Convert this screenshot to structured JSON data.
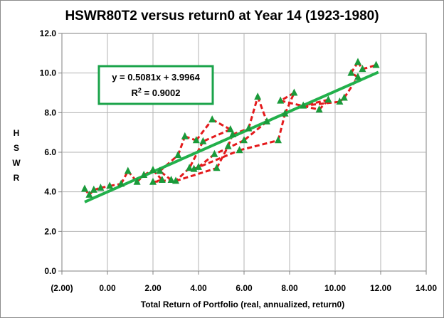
{
  "chart_data": {
    "type": "scatter",
    "title": "HSWR80T2 versus return0 at Year 14 (1923-1980)",
    "xlabel": "Total Return of Portfolio (real, annualized, return0)",
    "ylabel": "HSWR",
    "xlim": [
      -2,
      14
    ],
    "ylim": [
      0,
      12
    ],
    "x_ticks": [
      "(2.00)",
      "0.00",
      "2.00",
      "4.00",
      "6.00",
      "8.00",
      "10.00",
      "12.00",
      "14.00"
    ],
    "y_ticks": [
      "0.0",
      "2.0",
      "4.0",
      "6.0",
      "8.0",
      "10.0",
      "12.0"
    ],
    "grid": true,
    "colors": {
      "series": "#e41a1c",
      "marker": "#1a9a3a",
      "trend": "#22b04b",
      "negative_tick": "#cc0000"
    },
    "series": [
      {
        "points": [
          [
            -1.0,
            4.15
          ],
          [
            -0.8,
            3.85
          ],
          [
            -0.6,
            4.1
          ],
          [
            -0.3,
            4.2
          ],
          [
            0.1,
            4.3
          ],
          [
            0.6,
            4.4
          ],
          [
            0.9,
            5.05
          ],
          [
            1.3,
            4.5
          ],
          [
            1.6,
            4.85
          ],
          [
            2.0,
            5.1
          ],
          [
            2.4,
            4.6
          ],
          [
            2.0,
            4.5
          ],
          [
            2.8,
            4.6
          ],
          [
            2.3,
            5.05
          ],
          [
            3.1,
            5.85
          ],
          [
            3.4,
            6.8
          ],
          [
            3.9,
            6.6
          ],
          [
            4.6,
            7.65
          ],
          [
            5.4,
            7.15
          ],
          [
            4.2,
            6.55
          ],
          [
            3.6,
            5.2
          ],
          [
            3.0,
            4.55
          ],
          [
            4.8,
            5.2
          ],
          [
            5.3,
            6.3
          ],
          [
            5.5,
            6.9
          ],
          [
            6.2,
            7.2
          ],
          [
            6.6,
            8.8
          ],
          [
            7.0,
            7.55
          ],
          [
            6.0,
            6.6
          ],
          [
            4.7,
            5.9
          ],
          [
            4.0,
            5.25
          ],
          [
            3.8,
            5.15
          ],
          [
            5.8,
            6.1
          ],
          [
            7.5,
            6.6
          ],
          [
            7.8,
            7.95
          ],
          [
            8.2,
            9.0
          ],
          [
            7.6,
            8.6
          ],
          [
            9.3,
            8.15
          ],
          [
            9.7,
            8.65
          ],
          [
            8.6,
            8.35
          ],
          [
            10.2,
            8.55
          ],
          [
            10.4,
            8.75
          ],
          [
            11.0,
            9.8
          ],
          [
            10.7,
            10.0
          ],
          [
            11.0,
            10.55
          ],
          [
            11.2,
            10.2
          ],
          [
            11.8,
            10.4
          ]
        ]
      }
    ],
    "trendline": {
      "slope": 0.5081,
      "intercept": 3.9964,
      "x_range": [
        -1.0,
        11.9
      ]
    },
    "annotations": {
      "equation": "y = 0.5081x + 3.9964",
      "r2_label": "R",
      "r2_sup": "2",
      "r2_value": " = 0.9002"
    }
  }
}
